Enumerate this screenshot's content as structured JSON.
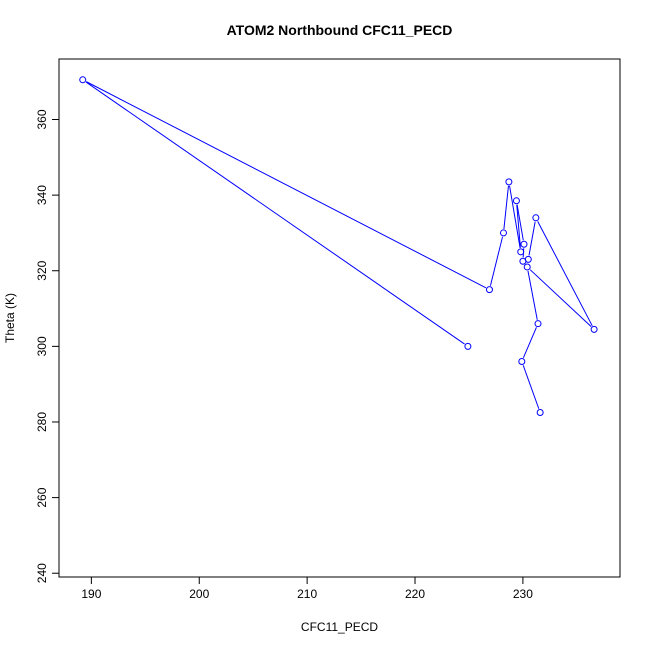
{
  "chart_data": {
    "type": "line",
    "title": "ATOM2 Northbound CFC11_PECD",
    "xlabel": "CFC11_PECD",
    "ylabel": "Theta (K)",
    "xlim": [
      187,
      239
    ],
    "ylim": [
      239,
      376
    ],
    "xticks": [
      190,
      200,
      210,
      220,
      230
    ],
    "yticks": [
      240,
      260,
      280,
      300,
      320,
      340,
      360
    ],
    "grid": false,
    "markers": "open-circle",
    "series": [
      {
        "color": "#0000ff",
        "points": [
          {
            "x": 231.6,
            "y": 282.5
          },
          {
            "x": 229.9,
            "y": 296.0
          },
          {
            "x": 231.4,
            "y": 306.0
          },
          {
            "x": 230.4,
            "y": 321.0
          },
          {
            "x": 236.6,
            "y": 304.5
          },
          {
            "x": 231.2,
            "y": 334.0
          },
          {
            "x": 230.5,
            "y": 323.0
          },
          {
            "x": 230.0,
            "y": 322.5
          },
          {
            "x": 230.1,
            "y": 327.0
          },
          {
            "x": 229.4,
            "y": 338.5
          },
          {
            "x": 229.8,
            "y": 325.0
          },
          {
            "x": 228.7,
            "y": 343.5
          },
          {
            "x": 228.2,
            "y": 330.0
          },
          {
            "x": 226.9,
            "y": 315.0
          },
          {
            "x": 189.2,
            "y": 370.5
          },
          {
            "x": 224.9,
            "y": 300.0
          }
        ]
      }
    ]
  }
}
